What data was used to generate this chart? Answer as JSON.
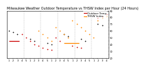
{
  "title": "Milwaukee Weather Outdoor Temperature vs THSW Index per Hour (24 Hours)",
  "title_fontsize": 3.5,
  "background_color": "#ffffff",
  "grid_color": "#bbbbbb",
  "xlim": [
    0.5,
    24.5
  ],
  "ylim": [
    20,
    90
  ],
  "yticks": [
    20,
    25,
    30,
    35,
    40,
    45,
    50,
    55,
    60,
    65,
    70,
    75,
    80,
    85,
    90
  ],
  "ytick_labels": [
    "20",
    "",
    "30",
    "",
    "40",
    "",
    "50",
    "",
    "60",
    "",
    "70",
    "",
    "80",
    "",
    "90"
  ],
  "ytick_fontsize": 2.5,
  "xtick_fontsize": 2.5,
  "vgrid_positions": [
    4.5,
    8.5,
    12.5,
    16.5,
    20.5
  ],
  "temp_color": "#cc0000",
  "thsw_color": "#ff8800",
  "black_color": "#111111",
  "marker_size": 1.5,
  "legend_temp": "Outdoor Temp",
  "legend_thsw": "THSW Index",
  "legend_fontsize": 2.8,
  "red_line": {
    "x": [
      1,
      3.5
    ],
    "y": [
      45,
      45
    ]
  },
  "orange_line": {
    "x": [
      14,
      17.5
    ],
    "y": [
      42,
      42
    ]
  },
  "scatter_temp": {
    "x": [
      4,
      5,
      6,
      7,
      8,
      9,
      10,
      11,
      12,
      13,
      16,
      17,
      18,
      22,
      23,
      24
    ],
    "y": [
      55,
      50,
      45,
      40,
      38,
      35,
      33,
      32,
      50,
      45,
      38,
      36,
      35,
      80,
      82,
      85
    ]
  },
  "scatter_thsw": {
    "x": [
      8,
      9,
      10,
      11,
      12,
      13,
      14,
      15,
      16,
      17,
      18,
      19,
      20,
      21,
      22,
      23,
      24
    ],
    "y": [
      60,
      55,
      50,
      45,
      65,
      60,
      55,
      50,
      75,
      70,
      65,
      60,
      55,
      50,
      75,
      80,
      82
    ]
  },
  "scatter_black": {
    "x": [
      1,
      2,
      3,
      6,
      7,
      10,
      11,
      14,
      15,
      18,
      19,
      22,
      23
    ],
    "y": [
      60,
      58,
      55,
      48,
      45,
      42,
      40,
      55,
      52,
      48,
      45,
      70,
      68
    ]
  },
  "xtick_positions": [
    1,
    2,
    3,
    4,
    5,
    6,
    7,
    8,
    9,
    10,
    11,
    12,
    13,
    14,
    15,
    16,
    17,
    18,
    19,
    20,
    21,
    22,
    23,
    24
  ],
  "xtick_labels": [
    "1",
    "2",
    "3",
    "4",
    "5",
    "1",
    "2",
    "3",
    "4",
    "5",
    "1",
    "2",
    "3",
    "4",
    "5",
    "1",
    "2",
    "3",
    "4",
    "5",
    "1",
    "2",
    "3",
    "4"
  ]
}
